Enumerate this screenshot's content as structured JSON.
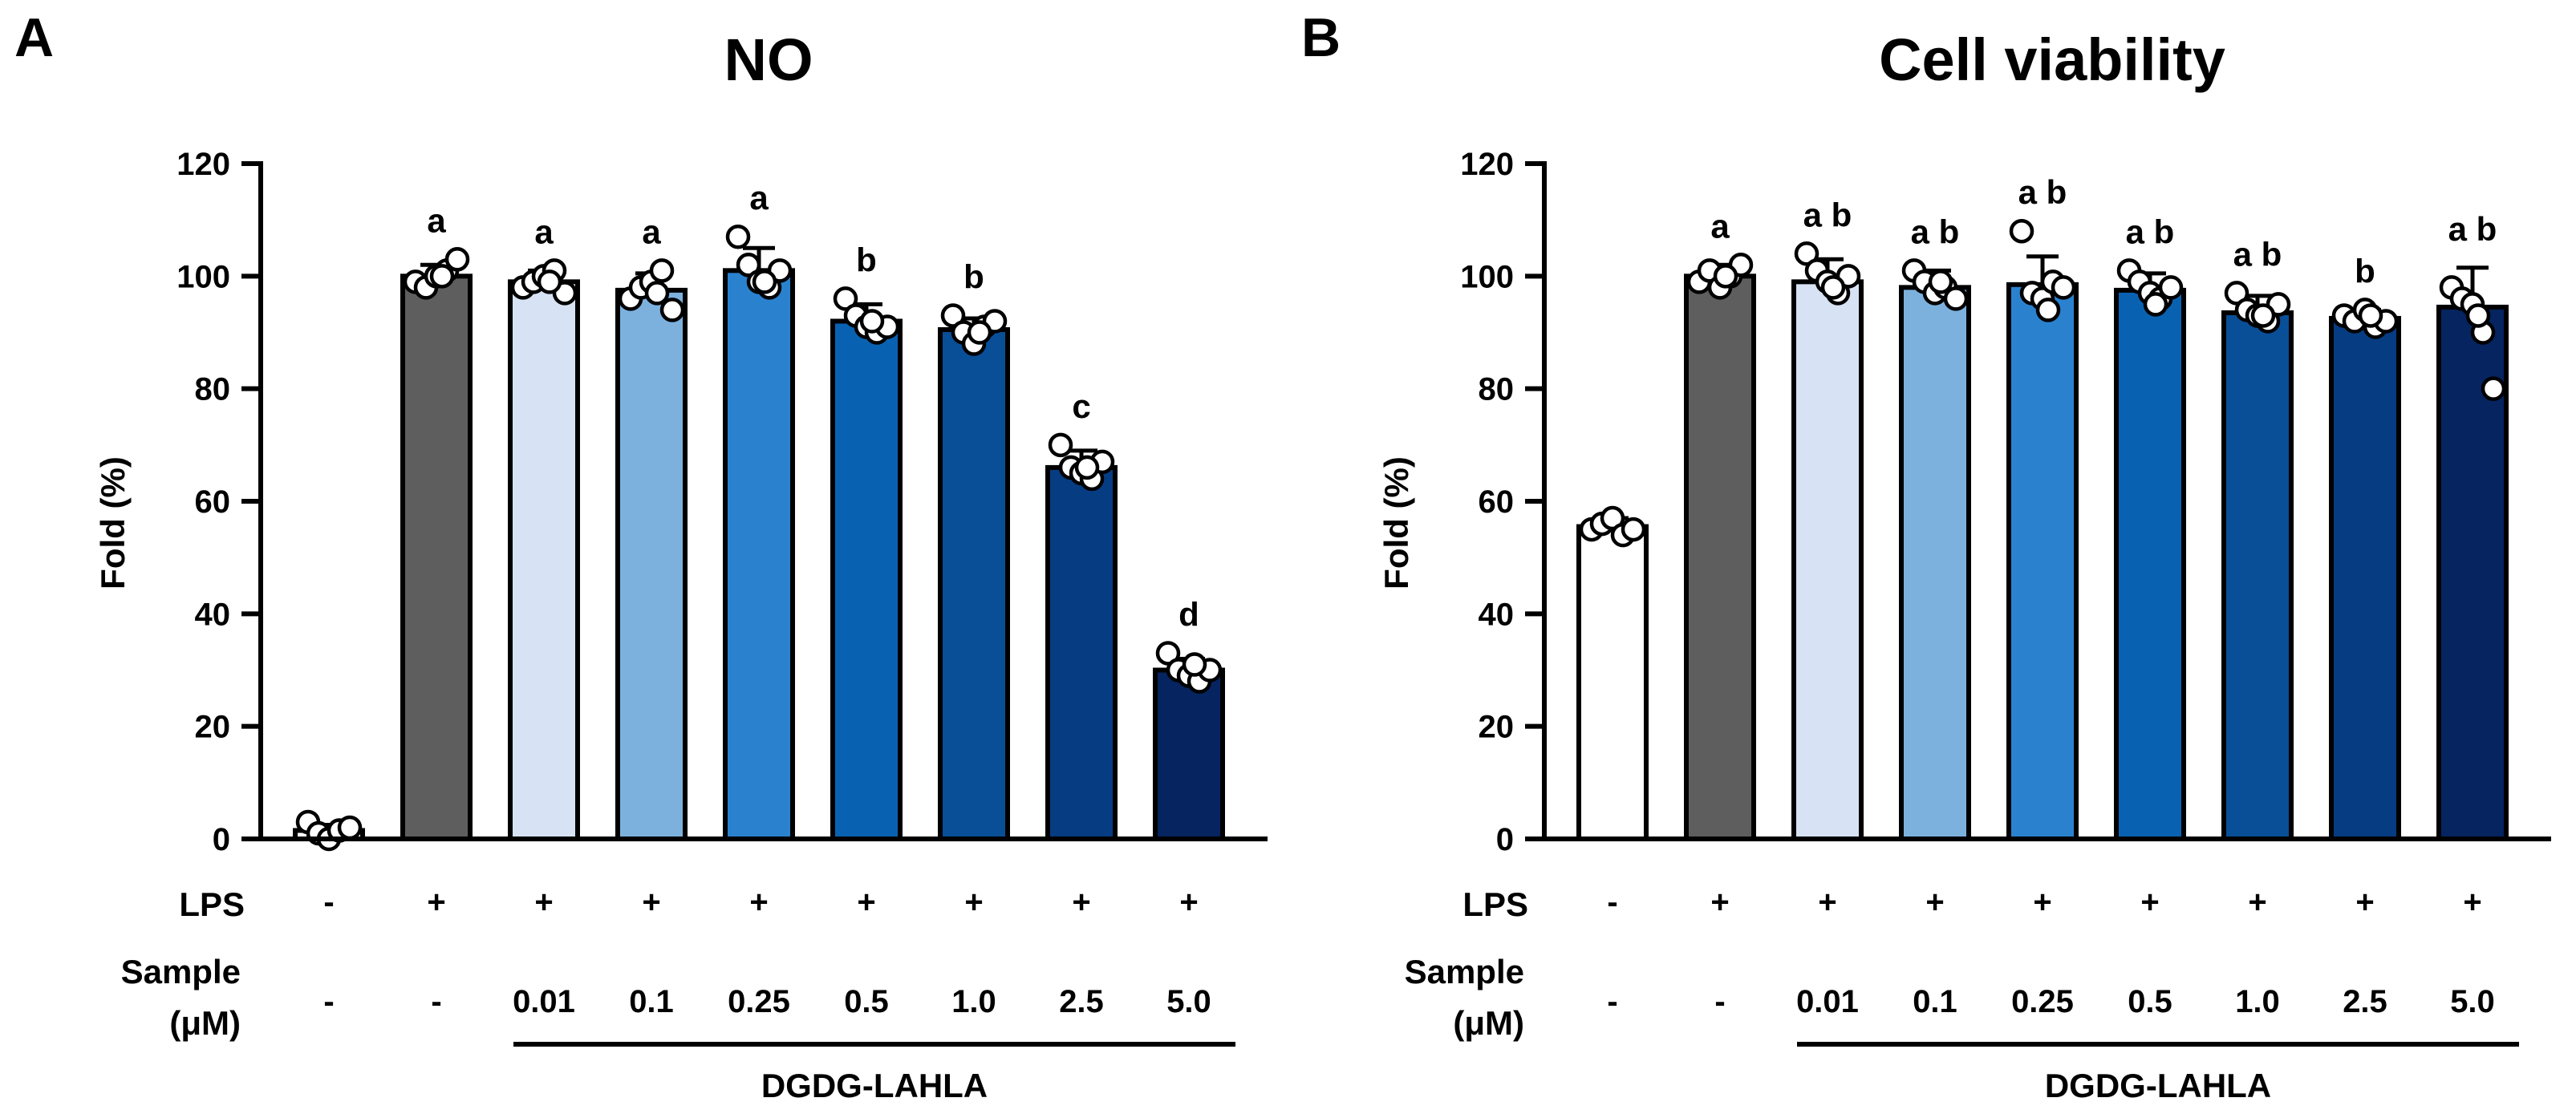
{
  "figure": {
    "panels": [
      "A",
      "B"
    ],
    "row_labels": {
      "lps": "LPS",
      "sample_line1": "Sample",
      "sample_line2": "(μM)"
    },
    "treatments": {
      "lps": [
        "-",
        "+",
        "+",
        "+",
        "+",
        "+",
        "+",
        "+",
        "+"
      ],
      "sample": [
        "-",
        "-",
        "0.01",
        "0.1",
        "0.25",
        "0.5",
        "1.0",
        "2.5",
        "5.0"
      ]
    },
    "group_label": "DGDG-LAHLA",
    "colors": {
      "bars": [
        "#ffffff",
        "#5e5e5e",
        "#d7e3f4",
        "#7cb1de",
        "#2a82cf",
        "#0962b1",
        "#084f98",
        "#063c82",
        "#052460"
      ],
      "outline": "#000000",
      "point_fill": "#ffffff"
    }
  },
  "chart_data": [
    {
      "type": "bar",
      "panel": "A",
      "title": "NO",
      "xlabel": "",
      "ylabel": "Fold (%)",
      "ylim": [
        0,
        120
      ],
      "yticks": [
        0,
        20,
        40,
        60,
        80,
        100,
        120
      ],
      "categories": [
        "-/-",
        "+/-",
        "+/0.01",
        "+/0.1",
        "+/0.25",
        "+/0.5",
        "+/1.0",
        "+/2.5",
        "+/5.0"
      ],
      "values": [
        1.5,
        100,
        99,
        97.5,
        101,
        92,
        90.5,
        66,
        30
      ],
      "errors": [
        1,
        2,
        2,
        3,
        4,
        3,
        2,
        3,
        2
      ],
      "significance": [
        "",
        "a",
        "a",
        "a",
        "a",
        "b",
        "b",
        "c",
        "d"
      ],
      "points": [
        [
          3,
          1,
          0,
          1.5,
          2
        ],
        [
          99,
          98,
          100,
          101,
          103,
          100
        ],
        [
          98,
          99,
          100,
          101,
          97,
          99
        ],
        [
          96,
          98,
          99,
          101,
          94,
          97
        ],
        [
          107,
          102,
          99,
          98,
          101,
          99
        ],
        [
          96,
          93,
          91,
          90,
          91,
          92
        ],
        [
          93,
          90,
          88,
          91,
          92,
          90
        ],
        [
          70,
          66,
          65,
          64,
          67,
          66
        ],
        [
          33,
          30,
          29,
          28,
          30,
          31
        ]
      ]
    },
    {
      "type": "bar",
      "panel": "B",
      "title": "Cell viability",
      "xlabel": "",
      "ylabel": "Fold (%)",
      "ylim": [
        0,
        120
      ],
      "yticks": [
        0,
        20,
        40,
        60,
        80,
        100,
        120
      ],
      "categories": [
        "-/-",
        "+/-",
        "+/0.01",
        "+/0.1",
        "+/0.25",
        "+/0.5",
        "+/1.0",
        "+/2.5",
        "+/5.0"
      ],
      "values": [
        55.5,
        100,
        99,
        98,
        98.5,
        97.5,
        93.5,
        92.5,
        94.5
      ],
      "errors": [
        1.5,
        2,
        4,
        3,
        5,
        3,
        3,
        1.5,
        7
      ],
      "significance": [
        "",
        "a",
        "ab",
        "ab",
        "ab",
        "ab",
        "ab",
        "b",
        "ab"
      ],
      "points": [
        [
          55,
          56,
          57,
          54,
          55
        ],
        [
          99,
          101,
          98,
          100,
          102,
          100
        ],
        [
          104,
          101,
          99,
          97,
          100,
          98
        ],
        [
          101,
          99,
          97,
          98,
          96,
          99
        ],
        [
          108,
          97,
          96,
          99,
          98,
          94
        ],
        [
          101,
          99,
          97,
          96,
          98,
          95
        ],
        [
          97,
          94,
          93,
          92,
          95,
          93
        ],
        [
          93,
          92,
          94,
          91,
          92,
          93
        ],
        [
          98,
          96,
          95,
          90,
          80,
          93
        ]
      ]
    }
  ]
}
